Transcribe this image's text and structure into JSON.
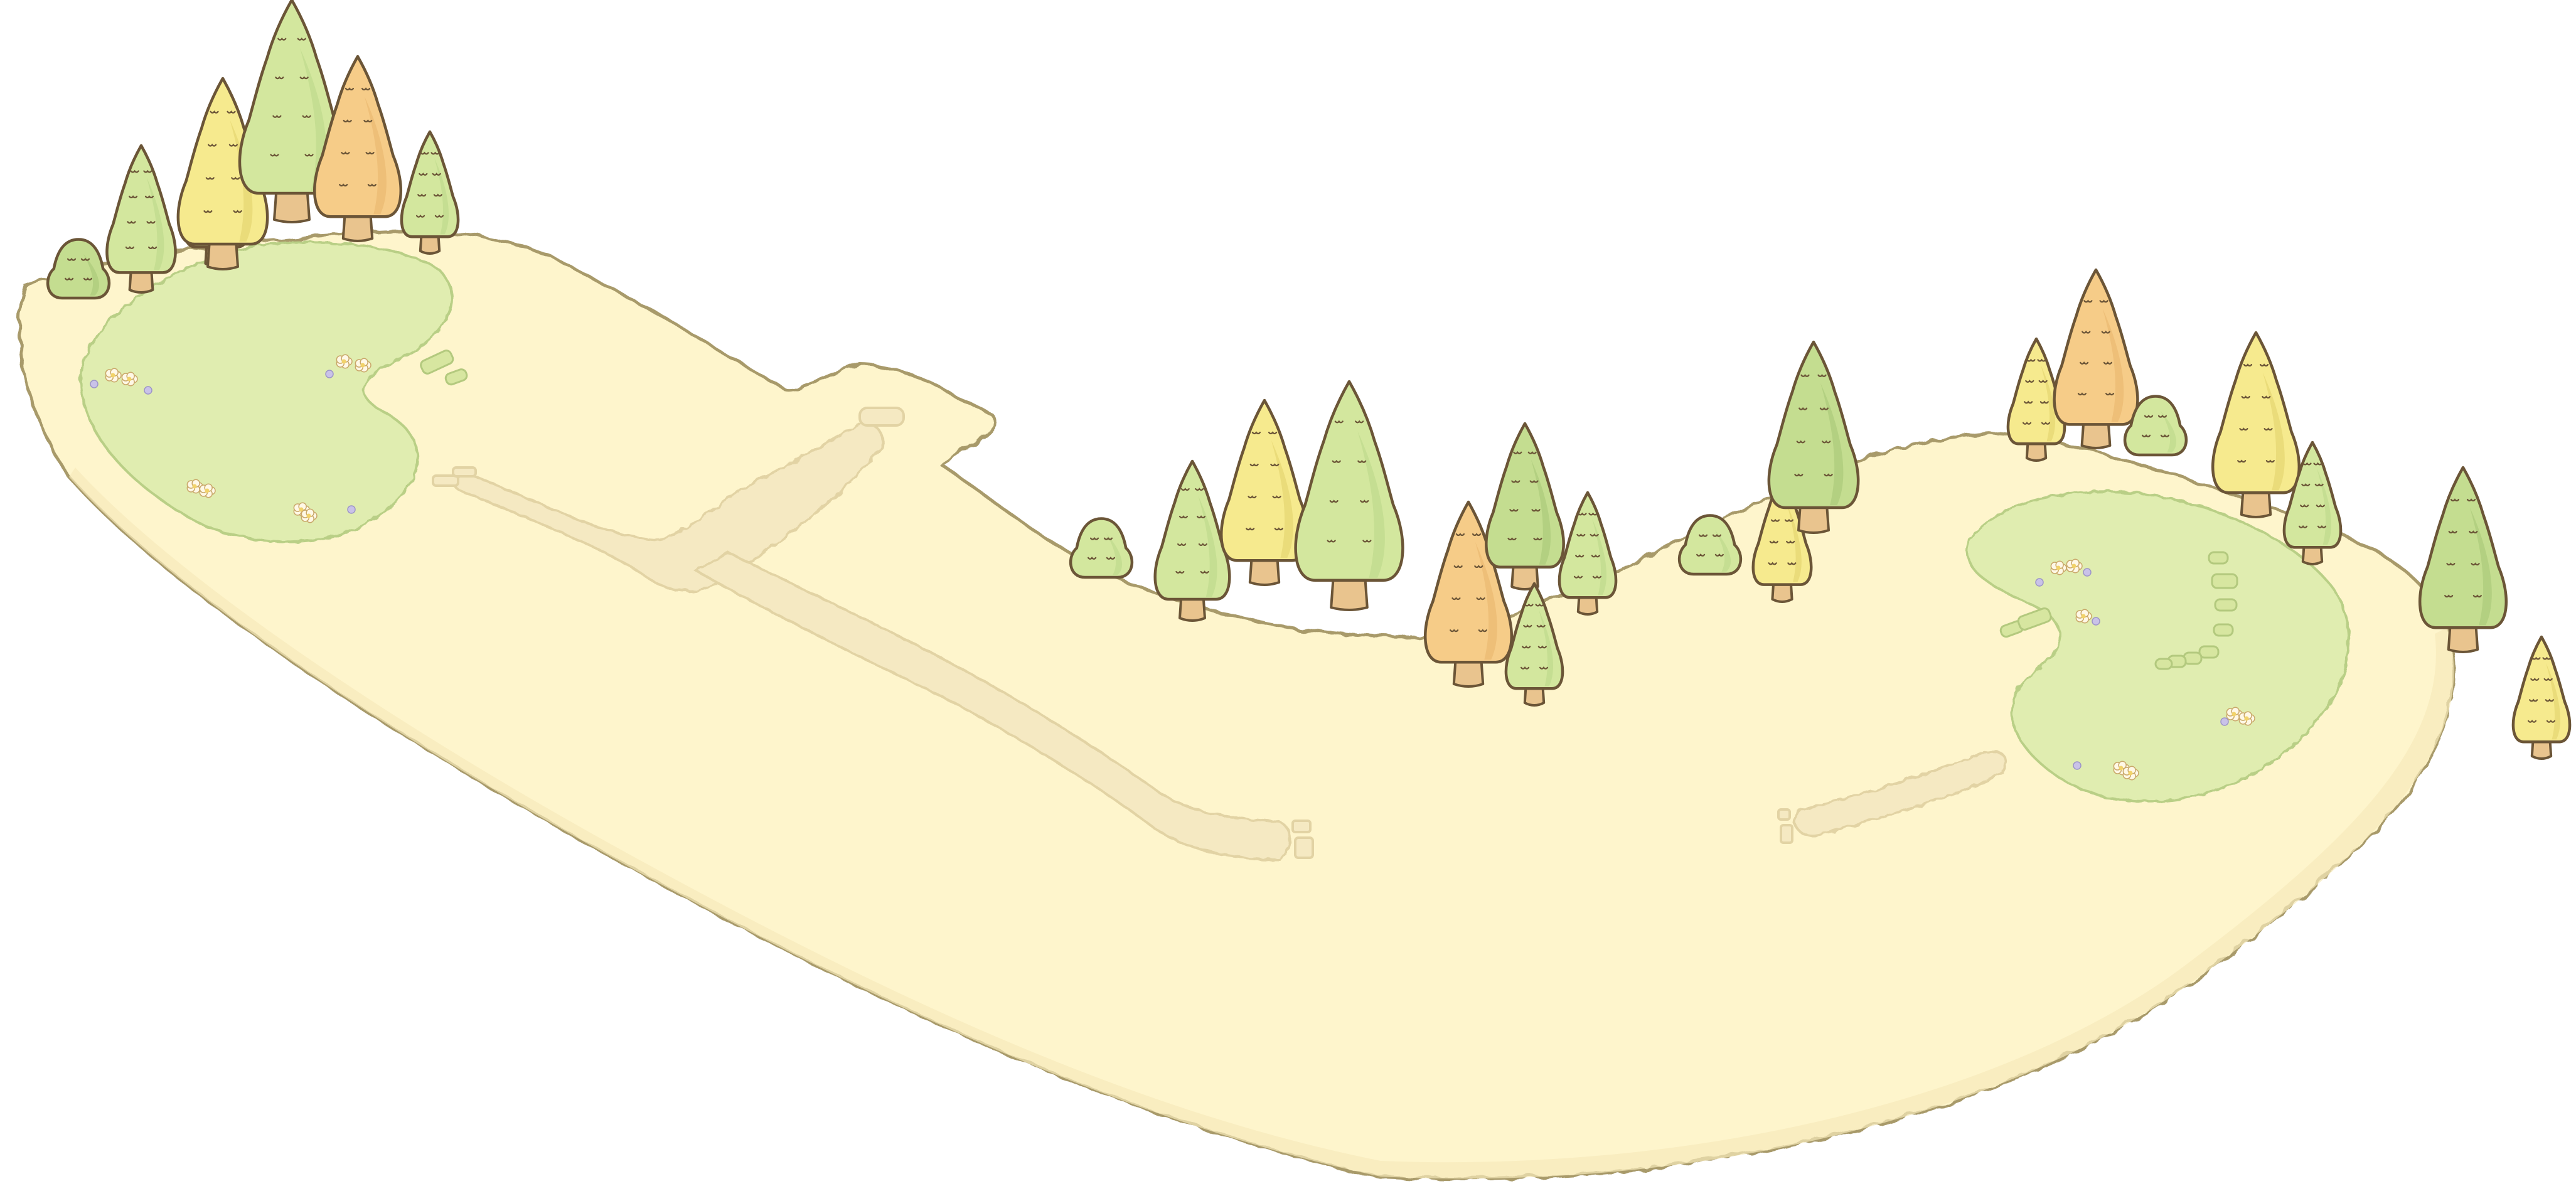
{
  "scene": {
    "type": "game-map",
    "description_visible_text": "",
    "colors": {
      "background": "#ffffff",
      "ground_fill": "#fef5cc",
      "ground_edge": "#a89a6a",
      "grass_fill": "#e0edb0",
      "grass_edge": "#b9cf86",
      "path_fill": "#f5e9c2",
      "path_edge": "#e2d3a4",
      "trunk": "#e9c48e",
      "outline": "#6b5537",
      "tree_green_light": "#d3e79e",
      "tree_green": "#c4dd90",
      "tree_yellow": "#f6ea8e",
      "tree_orange": "#f6cc88",
      "flower_white": "#fff8e6",
      "flower_purple": "#c9c2e8"
    },
    "icons": {
      "tree": "conifer-tree-icon",
      "bush": "small-bush-icon",
      "flower": "flower-icon"
    }
  }
}
